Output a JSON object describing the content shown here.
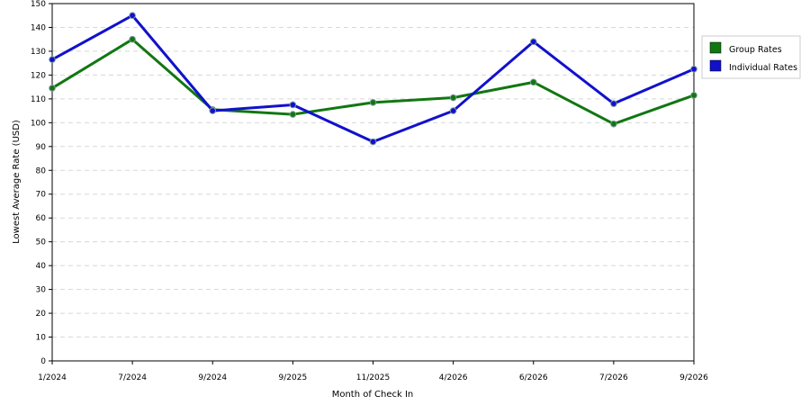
{
  "chart_data": {
    "type": "line",
    "title": "",
    "xlabel": "Month of Check In",
    "ylabel": "Lowest Average Rate (USD)",
    "ylim": [
      0,
      150
    ],
    "yticks": [
      0,
      10,
      20,
      30,
      40,
      50,
      60,
      70,
      80,
      90,
      100,
      110,
      120,
      130,
      140,
      150
    ],
    "grid": true,
    "legend_position": "right",
    "categories": [
      "1/2024",
      "7/2024",
      "9/2024",
      "9/2025",
      "11/2025",
      "4/2026",
      "6/2026",
      "7/2026",
      "9/2026"
    ],
    "series": [
      {
        "name": "Group Rates",
        "color": "#117711",
        "values": [
          114.5,
          135,
          105.5,
          103.5,
          108.5,
          110.5,
          117,
          99.5,
          111.5
        ]
      },
      {
        "name": "Individual Rates",
        "color": "#1111cc",
        "values": [
          126.5,
          145,
          105,
          107.5,
          92,
          105,
          134,
          108,
          122.5
        ]
      }
    ]
  }
}
